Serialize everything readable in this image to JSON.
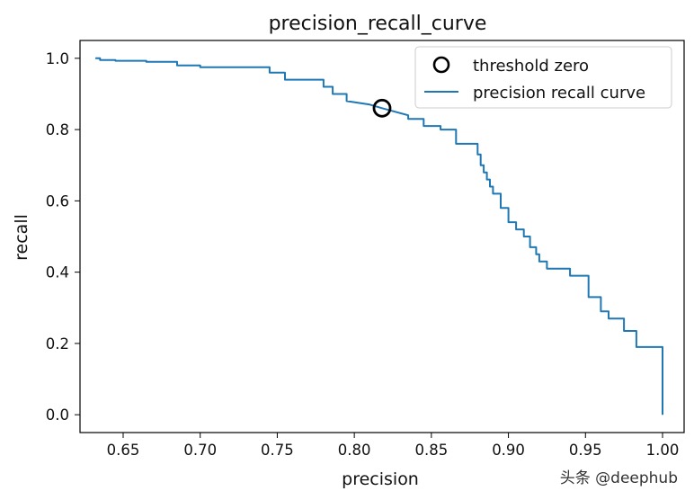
{
  "chart_data": {
    "type": "line",
    "title": "precision_recall_curve",
    "xlabel": "precision",
    "ylabel": "recall",
    "xlim": [
      0.622,
      1.014
    ],
    "ylim": [
      -0.05,
      1.05
    ],
    "x_ticks": [
      "0.65",
      "0.70",
      "0.75",
      "0.80",
      "0.85",
      "0.90",
      "0.95",
      "1.00"
    ],
    "y_ticks": [
      "0.0",
      "0.2",
      "0.4",
      "0.6",
      "0.8",
      "1.0"
    ],
    "grid": false,
    "legend_placement": "upper right",
    "series": [
      {
        "name": "threshold zero",
        "kind": "marker",
        "marker": "open-circle",
        "color": "#000000",
        "x": [
          0.818
        ],
        "y": [
          0.86
        ]
      },
      {
        "name": "precision recall curve",
        "kind": "line",
        "color": "#1f77b4",
        "x": [
          0.632,
          0.635,
          0.635,
          0.645,
          0.645,
          0.665,
          0.665,
          0.685,
          0.685,
          0.7,
          0.7,
          0.745,
          0.745,
          0.755,
          0.755,
          0.78,
          0.78,
          0.786,
          0.786,
          0.795,
          0.795,
          0.81,
          0.818,
          0.835,
          0.835,
          0.845,
          0.845,
          0.856,
          0.856,
          0.866,
          0.866,
          0.88,
          0.88,
          0.882,
          0.882,
          0.884,
          0.884,
          0.886,
          0.886,
          0.888,
          0.888,
          0.89,
          0.89,
          0.895,
          0.895,
          0.9,
          0.9,
          0.905,
          0.905,
          0.91,
          0.91,
          0.914,
          0.914,
          0.918,
          0.918,
          0.92,
          0.92,
          0.925,
          0.925,
          0.94,
          0.94,
          0.952,
          0.952,
          0.96,
          0.96,
          0.965,
          0.965,
          0.975,
          0.975,
          0.983,
          0.983,
          1.0,
          1.0
        ],
        "y": [
          1.0,
          1.0,
          0.995,
          0.995,
          0.993,
          0.993,
          0.99,
          0.99,
          0.98,
          0.98,
          0.975,
          0.975,
          0.96,
          0.96,
          0.94,
          0.94,
          0.92,
          0.92,
          0.9,
          0.9,
          0.88,
          0.87,
          0.86,
          0.84,
          0.83,
          0.83,
          0.81,
          0.81,
          0.8,
          0.8,
          0.76,
          0.76,
          0.73,
          0.73,
          0.7,
          0.7,
          0.68,
          0.68,
          0.66,
          0.66,
          0.64,
          0.64,
          0.62,
          0.62,
          0.58,
          0.58,
          0.54,
          0.54,
          0.52,
          0.52,
          0.5,
          0.5,
          0.47,
          0.47,
          0.45,
          0.45,
          0.43,
          0.43,
          0.41,
          0.41,
          0.39,
          0.39,
          0.33,
          0.33,
          0.29,
          0.29,
          0.27,
          0.27,
          0.235,
          0.235,
          0.19,
          0.19,
          0.0
        ]
      }
    ]
  },
  "watermark": "头条 @deephub"
}
